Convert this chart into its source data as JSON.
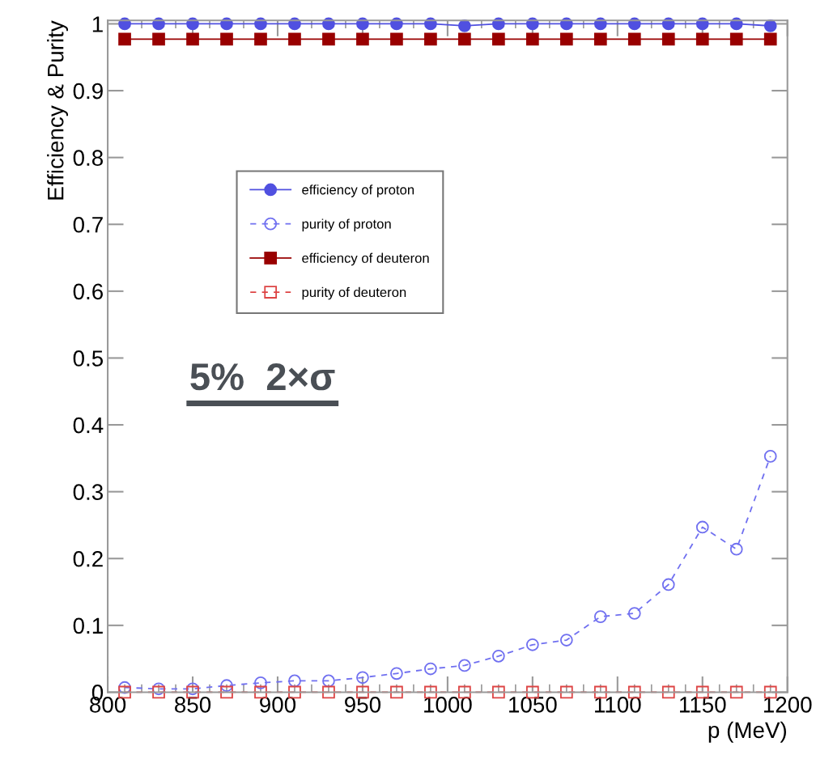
{
  "chart_data": {
    "type": "line",
    "xlabel": "p (MeV)",
    "ylabel": "Efficiency & Purity",
    "x": [
      810,
      830,
      850,
      870,
      890,
      910,
      930,
      950,
      970,
      990,
      1010,
      1030,
      1050,
      1070,
      1090,
      1110,
      1130,
      1150,
      1170,
      1190
    ],
    "series": [
      {
        "name": "efficiency of proton",
        "color": "#5050e0",
        "marker": "circle",
        "line_style": "solid",
        "values": [
          1,
          1,
          1,
          1,
          1,
          1,
          1,
          1,
          1,
          1,
          0.997,
          1,
          1,
          1,
          1,
          1,
          1,
          1,
          1,
          0.997
        ]
      },
      {
        "name": "purity of proton",
        "color": "#7070f0",
        "marker": "circle",
        "line_style": "dashed",
        "values": [
          0.007,
          0.005,
          0.005,
          0.01,
          0.014,
          0.017,
          0.017,
          0.022,
          0.028,
          0.035,
          0.04,
          0.054,
          0.071,
          0.078,
          0.113,
          0.118,
          0.161,
          0.247,
          0.214,
          0.353
        ]
      },
      {
        "name": "efficiency of deuteron",
        "color": "#990000",
        "marker": "square",
        "line_style": "solid",
        "values": [
          0.977,
          0.977,
          0.977,
          0.977,
          0.977,
          0.977,
          0.977,
          0.977,
          0.977,
          0.977,
          0.977,
          0.977,
          0.977,
          0.977,
          0.977,
          0.977,
          0.977,
          0.977,
          0.977,
          0.977
        ]
      },
      {
        "name": "purity of deuteron",
        "color": "#dd4444",
        "marker": "square",
        "line_style": "dashed",
        "values": [
          0,
          0,
          0,
          0,
          0,
          0,
          0,
          0,
          0,
          0,
          0,
          0,
          0,
          0,
          0,
          0,
          0,
          0,
          0,
          0
        ]
      }
    ],
    "xlim": [
      800,
      1200
    ],
    "xticks": [
      800,
      850,
      900,
      950,
      1000,
      1050,
      1100,
      1150,
      1200
    ],
    "ylim": [
      0,
      1.005
    ],
    "yticks": [
      0,
      0.1,
      0.2,
      0.3,
      0.4,
      0.5,
      0.6,
      0.7,
      0.8,
      0.9,
      1
    ],
    "legend": "left",
    "annotations": [
      "5%  2×σ"
    ]
  }
}
